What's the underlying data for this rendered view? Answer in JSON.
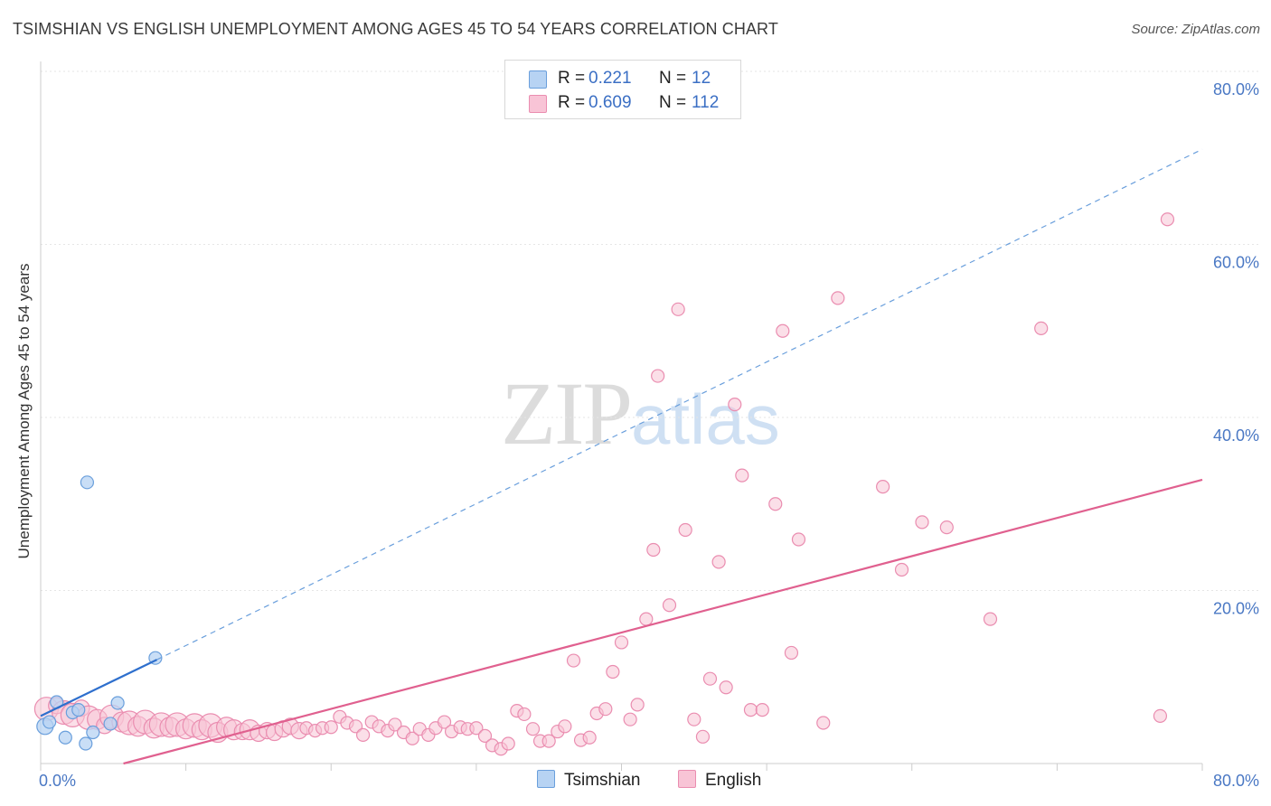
{
  "title": "TSIMSHIAN VS ENGLISH UNEMPLOYMENT AMONG AGES 45 TO 54 YEARS CORRELATION CHART",
  "source": "Source: ZipAtlas.com",
  "watermark": {
    "zip": "ZIP",
    "atlas": "atlas"
  },
  "colors": {
    "tsimshian_fill": "#b7d3f3",
    "tsimshian_stroke": "#6a9fdc",
    "tsimshian_line": "#2e6fcd",
    "english_fill": "#f8c4d6",
    "english_stroke": "#ea8db0",
    "english_line": "#e0608f",
    "tick_label": "#4a78c4",
    "grid": "#e6e6e6"
  },
  "legend": {
    "rows": [
      {
        "r_label": "R =",
        "r_value": "0.221",
        "n_label": "N =",
        "n_value": "12"
      },
      {
        "r_label": "R =",
        "r_value": "0.609",
        "n_label": "N =",
        "n_value": "112"
      }
    ],
    "series": [
      "Tsimshian",
      "English"
    ]
  },
  "chart_data": {
    "type": "scatter",
    "title": "TSIMSHIAN VS ENGLISH UNEMPLOYMENT AMONG AGES 45 TO 54 YEARS CORRELATION CHART",
    "xlabel": "",
    "ylabel": "Unemployment Among Ages 45 to 54 years",
    "xlim": [
      0,
      80
    ],
    "ylim": [
      0,
      80
    ],
    "x_tick_labels": [
      {
        "v": 0,
        "label": "0.0%"
      },
      {
        "v": 80,
        "label": "80.0%"
      }
    ],
    "y_tick_labels": [
      {
        "v": 20,
        "label": "20.0%"
      },
      {
        "v": 40,
        "label": "40.0%"
      },
      {
        "v": 60,
        "label": "60.0%"
      },
      {
        "v": 80,
        "label": "80.0%"
      }
    ],
    "series": [
      {
        "name": "Tsimshian",
        "r": 0.221,
        "n": 12,
        "trend_solid": [
          [
            0,
            5.5
          ],
          [
            8,
            12
          ]
        ],
        "trend_dashed": [
          [
            8,
            12
          ],
          [
            80,
            71
          ]
        ],
        "points": [
          [
            0.3,
            4.3,
            9
          ],
          [
            0.6,
            4.8,
            7
          ],
          [
            1.1,
            7.1,
            7
          ],
          [
            1.7,
            3.0,
            7
          ],
          [
            2.2,
            5.9,
            7
          ],
          [
            2.6,
            6.2,
            7
          ],
          [
            3.1,
            2.3,
            7
          ],
          [
            3.2,
            32.5,
            7
          ],
          [
            3.6,
            3.6,
            7
          ],
          [
            4.8,
            4.6,
            7
          ],
          [
            5.3,
            7.0,
            7
          ],
          [
            7.9,
            12.2,
            7
          ]
        ]
      },
      {
        "name": "English",
        "r": 0.609,
        "n": 112,
        "trend": [
          [
            5.7,
            0
          ],
          [
            80,
            32.8
          ]
        ],
        "points": [
          [
            0.4,
            6.3,
            13
          ],
          [
            1.1,
            6.7,
            9
          ],
          [
            1.6,
            5.9,
            13
          ],
          [
            2.2,
            5.6,
            13
          ],
          [
            2.8,
            6.4,
            9
          ],
          [
            3.3,
            5.3,
            13
          ],
          [
            3.9,
            5.1,
            11
          ],
          [
            4.4,
            4.4,
            9
          ],
          [
            4.9,
            5.4,
            13
          ],
          [
            5.6,
            4.8,
            11
          ],
          [
            6.1,
            4.7,
            13
          ],
          [
            6.7,
            4.3,
            11
          ],
          [
            7.2,
            4.8,
            13
          ],
          [
            7.8,
            4.1,
            11
          ],
          [
            8.3,
            4.5,
            13
          ],
          [
            8.9,
            4.2,
            11
          ],
          [
            9.4,
            4.5,
            13
          ],
          [
            10.0,
            4.0,
            11
          ],
          [
            10.6,
            4.4,
            13
          ],
          [
            11.1,
            3.9,
            11
          ],
          [
            11.7,
            4.4,
            13
          ],
          [
            12.2,
            3.6,
            11
          ],
          [
            12.8,
            4.2,
            11
          ],
          [
            13.3,
            3.9,
            11
          ],
          [
            13.9,
            3.7,
            9
          ],
          [
            14.4,
            3.9,
            11
          ],
          [
            15.0,
            3.5,
            9
          ],
          [
            15.6,
            3.8,
            9
          ],
          [
            16.1,
            3.6,
            9
          ],
          [
            16.7,
            4.0,
            9
          ],
          [
            17.2,
            4.3,
            9
          ],
          [
            17.8,
            3.8,
            9
          ],
          [
            18.3,
            4.1,
            7
          ],
          [
            18.9,
            3.8,
            7
          ],
          [
            19.4,
            4.1,
            7
          ],
          [
            20.0,
            4.2,
            7
          ],
          [
            20.6,
            5.4,
            7
          ],
          [
            21.1,
            4.7,
            7
          ],
          [
            21.7,
            4.3,
            7
          ],
          [
            22.2,
            3.3,
            7
          ],
          [
            22.8,
            4.8,
            7
          ],
          [
            23.3,
            4.3,
            7
          ],
          [
            23.9,
            3.8,
            7
          ],
          [
            24.4,
            4.5,
            7
          ],
          [
            25.0,
            3.6,
            7
          ],
          [
            25.6,
            2.9,
            7
          ],
          [
            26.1,
            4.0,
            7
          ],
          [
            26.7,
            3.3,
            7
          ],
          [
            27.2,
            4.1,
            7
          ],
          [
            27.8,
            4.8,
            7
          ],
          [
            28.3,
            3.7,
            7
          ],
          [
            28.9,
            4.2,
            7
          ],
          [
            29.4,
            4.0,
            7
          ],
          [
            30.0,
            4.1,
            7
          ],
          [
            30.6,
            3.2,
            7
          ],
          [
            31.1,
            2.1,
            7
          ],
          [
            31.7,
            1.7,
            7
          ],
          [
            32.2,
            2.3,
            7
          ],
          [
            32.8,
            6.1,
            7
          ],
          [
            33.3,
            5.7,
            7
          ],
          [
            33.9,
            4.0,
            7
          ],
          [
            34.4,
            2.6,
            7
          ],
          [
            35.0,
            2.6,
            7
          ],
          [
            35.6,
            3.7,
            7
          ],
          [
            36.1,
            4.3,
            7
          ],
          [
            36.7,
            11.9,
            7
          ],
          [
            37.2,
            2.7,
            7
          ],
          [
            37.8,
            3.0,
            7
          ],
          [
            38.3,
            5.8,
            7
          ],
          [
            38.9,
            6.3,
            7
          ],
          [
            39.4,
            10.6,
            7
          ],
          [
            40.0,
            14.0,
            7
          ],
          [
            40.6,
            5.1,
            7
          ],
          [
            41.1,
            6.8,
            7
          ],
          [
            41.7,
            16.7,
            7
          ],
          [
            42.2,
            24.7,
            7
          ],
          [
            42.5,
            44.8,
            7
          ],
          [
            43.3,
            18.3,
            7
          ],
          [
            43.9,
            52.5,
            7
          ],
          [
            44.4,
            27.0,
            7
          ],
          [
            45.0,
            5.1,
            7
          ],
          [
            45.6,
            3.1,
            7
          ],
          [
            46.1,
            9.8,
            7
          ],
          [
            46.7,
            23.3,
            7
          ],
          [
            47.2,
            8.8,
            7
          ],
          [
            47.8,
            41.5,
            7
          ],
          [
            48.3,
            33.3,
            7
          ],
          [
            48.9,
            6.2,
            7
          ],
          [
            49.7,
            6.2,
            7
          ],
          [
            50.6,
            30.0,
            7
          ],
          [
            51.1,
            50.0,
            7
          ],
          [
            51.7,
            12.8,
            7
          ],
          [
            52.2,
            25.9,
            7
          ],
          [
            53.9,
            4.7,
            7
          ],
          [
            54.9,
            53.8,
            7
          ],
          [
            58.0,
            32.0,
            7
          ],
          [
            59.3,
            22.4,
            7
          ],
          [
            60.7,
            27.9,
            7
          ],
          [
            62.4,
            27.3,
            7
          ],
          [
            65.4,
            16.7,
            7
          ],
          [
            68.9,
            50.3,
            7
          ],
          [
            77.1,
            5.5,
            7
          ],
          [
            77.6,
            62.9,
            7
          ]
        ]
      }
    ]
  }
}
